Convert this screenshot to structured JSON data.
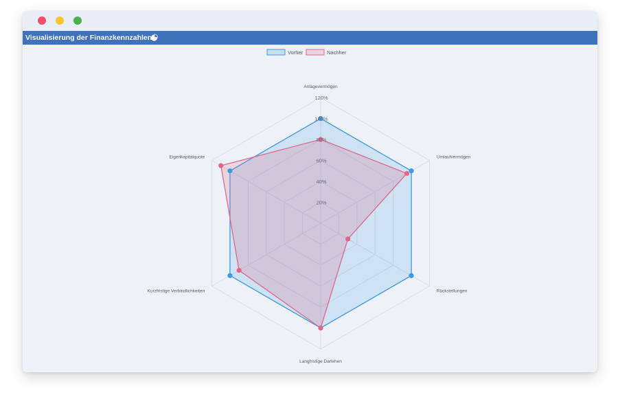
{
  "window": {
    "title": "Visualisierung der Finanzkennzahlen"
  },
  "header": {
    "title": "Visualisierung der Finanzkennzahlen",
    "icon": "pie-chart-icon"
  },
  "colors": {
    "header_bg": "#3f72ba",
    "vorher": "#3b9be0",
    "nachher": "#e0678a"
  },
  "chart_data": {
    "type": "radar",
    "categories": [
      "Anlagevermögen",
      "Umlaufvermögen",
      "Rückstellungen",
      "Langfristige Darlehen",
      "Kurzfristige Verbindlichkeiten",
      "Eigenkapitalquote"
    ],
    "series": [
      {
        "name": "Vorher",
        "values": [
          100,
          100,
          100,
          100,
          100,
          100
        ]
      },
      {
        "name": "Nachher",
        "values": [
          80,
          95,
          30,
          100,
          90,
          110
        ]
      }
    ],
    "r_ticks": [
      "20%",
      "40%",
      "60%",
      "80%",
      "100%",
      "120%"
    ],
    "r_range": [
      0,
      120
    ],
    "legend_position": "top"
  }
}
